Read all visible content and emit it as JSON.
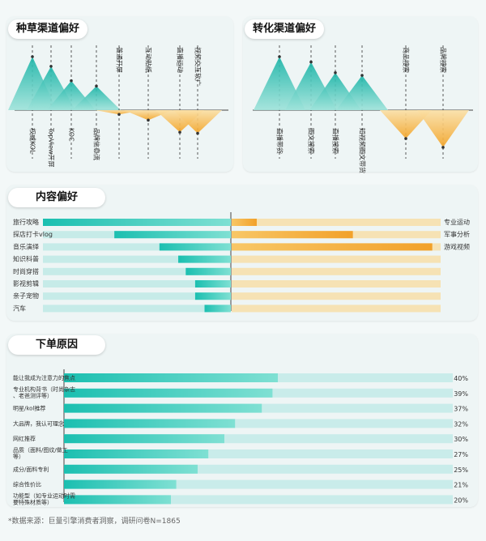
{
  "sections": {
    "seed": "种草渠道偏好",
    "convert": "转化渠道偏好",
    "content": "内容偏好",
    "reason": "下单原因"
  },
  "colors": {
    "teal": "#26c6b8",
    "orange": "#f4a31e",
    "peach": "#f6e2b4",
    "lightTeal": "#c9ecea"
  },
  "chart_data": [
    {
      "type": "area",
      "title": "种草渠道偏好",
      "up": [
        {
          "label": "权威KOL",
          "value": 1.0
        },
        {
          "label": "TopView开屏",
          "value": 0.82
        },
        {
          "label": "KOC",
          "value": 0.55
        },
        {
          "label": "品牌信息流",
          "value": 0.45
        }
      ],
      "down": [
        {
          "label": "普通开屏",
          "value": 0.12
        },
        {
          "label": "互动贴纸",
          "value": 0.28
        },
        {
          "label": "直播运动",
          "value": 0.62
        },
        {
          "label": "视频交互软广",
          "value": 0.65
        }
      ]
    },
    {
      "type": "area",
      "title": "转化渠道偏好",
      "up": [
        {
          "label": "直播带货",
          "value": 1.0
        },
        {
          "label": "图文搜索",
          "value": 0.9
        },
        {
          "label": "直播搜索",
          "value": 0.7
        },
        {
          "label": "短视频图文带货",
          "value": 0.65
        }
      ],
      "down": [
        {
          "label": "商品搜索",
          "value": 0.65
        },
        {
          "label": "品牌搜索",
          "value": 0.85
        }
      ]
    },
    {
      "type": "bar",
      "title": "内容偏好",
      "left": [
        {
          "label": "旅行攻略",
          "value": 1.0
        },
        {
          "label": "探店打卡vlog",
          "value": 0.62
        },
        {
          "label": "音乐演绎",
          "value": 0.38
        },
        {
          "label": "知识科普",
          "value": 0.28
        },
        {
          "label": "时尚穿搭",
          "value": 0.24
        },
        {
          "label": "影视剪辑",
          "value": 0.19
        },
        {
          "label": "亲子宠物",
          "value": 0.19
        },
        {
          "label": "汽车",
          "value": 0.14
        }
      ],
      "right": [
        {
          "label": "专业运动",
          "value": 0.12
        },
        {
          "label": "军事分析",
          "value": 0.58
        },
        {
          "label": "游戏视频",
          "value": 0.96
        }
      ]
    },
    {
      "type": "bar",
      "title": "下单原因",
      "series": [
        {
          "label": "能让我成为注意力的焦点",
          "value": 40,
          "text": "40%"
        },
        {
          "label": "专业机构背书（时尚杂志、老爸测评等）",
          "value": 39,
          "text": "39%"
        },
        {
          "label": "明星/kol推荐",
          "value": 37,
          "text": "37%"
        },
        {
          "label": "大品牌，我认可理念",
          "value": 32,
          "text": "32%"
        },
        {
          "label": "网红推荐",
          "value": 30,
          "text": "30%"
        },
        {
          "label": "品质（面料/图纹/做工等）",
          "value": 27,
          "text": "27%"
        },
        {
          "label": "成分/面料专利",
          "value": 25,
          "text": "25%"
        },
        {
          "label": "综合性价比",
          "value": 21,
          "text": "21%"
        },
        {
          "label": "功能型（如专业运动时需要特殊材质等）",
          "value": 20,
          "text": "20%"
        }
      ]
    }
  ],
  "footnote": "*数据来源：巨量引擎消费者洞察，调研问卷N=1865"
}
